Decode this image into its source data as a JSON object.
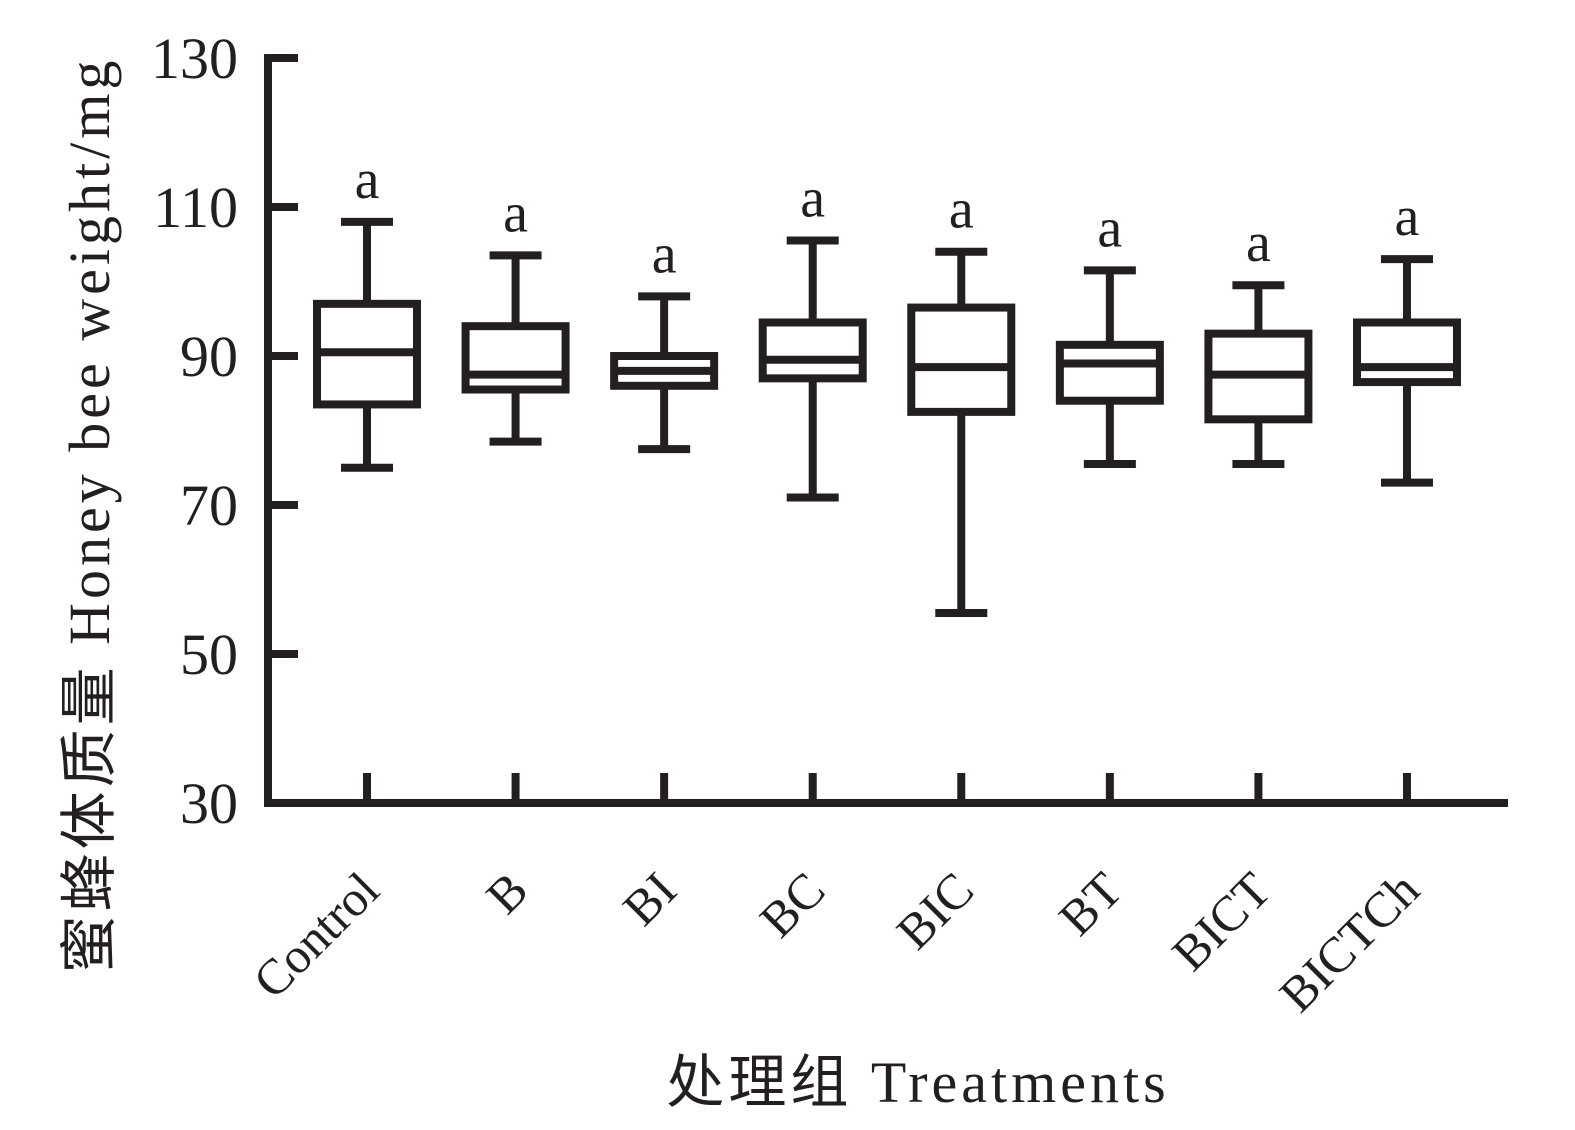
{
  "chart_data": {
    "type": "boxplot",
    "title": "",
    "xlabel": "处理组 Treatments",
    "ylabel": "蜜蜂体质量 Honey bee weight/mg",
    "ylim": [
      30,
      130
    ],
    "yticks": [
      130,
      110,
      90,
      70,
      50,
      30
    ],
    "grid": false,
    "legend_position": "none",
    "line_color": "#231f20",
    "background": "#ffffff",
    "categories": [
      "Control",
      "B",
      "BI",
      "BC",
      "BIC",
      "BT",
      "BICT",
      "BICTCh"
    ],
    "significance_labels": [
      "a",
      "a",
      "a",
      "a",
      "a",
      "a",
      "a",
      "a"
    ],
    "boxes": [
      {
        "category": "Control",
        "min": 75,
        "q1": 83.5,
        "median": 90.5,
        "q3": 97,
        "max": 108,
        "sig": "a"
      },
      {
        "category": "B",
        "min": 78.5,
        "q1": 85.5,
        "median": 87.5,
        "q3": 94,
        "max": 103.5,
        "sig": "a"
      },
      {
        "category": "BI",
        "min": 77.5,
        "q1": 86,
        "median": 88,
        "q3": 90,
        "max": 98,
        "sig": "a"
      },
      {
        "category": "BC",
        "min": 71,
        "q1": 87,
        "median": 89.5,
        "q3": 94.5,
        "max": 105.5,
        "sig": "a"
      },
      {
        "category": "BIC",
        "min": 55.5,
        "q1": 82.5,
        "median": 88.5,
        "q3": 96.5,
        "max": 104,
        "sig": "a"
      },
      {
        "category": "BT",
        "min": 75.5,
        "q1": 84,
        "median": 89,
        "q3": 91.5,
        "max": 101.5,
        "sig": "a"
      },
      {
        "category": "BICT",
        "min": 75.5,
        "q1": 81.5,
        "median": 87.5,
        "q3": 93,
        "max": 99.5,
        "sig": "a"
      },
      {
        "category": "BICTCh",
        "min": 73,
        "q1": 86.5,
        "median": 88.5,
        "q3": 94.5,
        "max": 103,
        "sig": "a"
      }
    ]
  }
}
